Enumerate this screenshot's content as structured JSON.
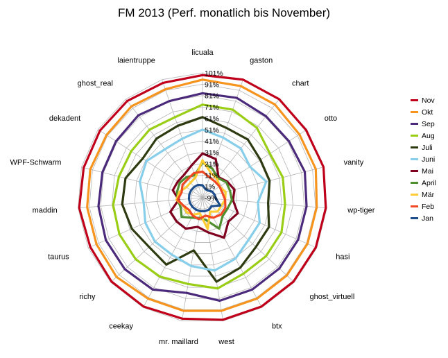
{
  "chart_data": {
    "type": "radar",
    "title": "FM 2013 (Perf. monatlich bis November)",
    "axis_tick_labels": [
      "-9%",
      "1%",
      "11%",
      "21%",
      "31%",
      "41%",
      "51%",
      "61%",
      "71%",
      "81%",
      "91%",
      "101%"
    ],
    "rlim": [
      -9,
      101
    ],
    "grid": true,
    "legend_position": "right",
    "categories": [
      "licuala",
      "gaston",
      "chart",
      "otto",
      "vanity",
      "wp-tiger",
      "hasi",
      "ghost_virtuell",
      "btx",
      "west",
      "mr. maillard",
      "ceekay",
      "richy",
      "taurus",
      "maddin",
      "WPF-Schwarm",
      "dekadent",
      "ghost_real",
      "laientruppe"
    ],
    "series": [
      {
        "name": "Nov",
        "color": "#c0001a",
        "values": [
          99,
          101,
          101,
          100,
          101,
          100,
          100,
          100,
          100,
          100,
          99,
          100,
          100,
          99,
          100,
          99,
          99,
          99,
          98
        ]
      },
      {
        "name": "Okt",
        "color": "#f7941d",
        "values": [
          95,
          95,
          95,
          93,
          94,
          92,
          92,
          92,
          92,
          92,
          92,
          92,
          94,
          93,
          93,
          93,
          92,
          93,
          92
        ]
      },
      {
        "name": "Sep",
        "color": "#4b2a7b",
        "values": [
          83,
          84,
          82,
          82,
          84,
          83,
          83,
          83,
          83,
          83,
          76,
          83,
          84,
          84,
          83,
          82,
          82,
          83,
          81
        ]
      },
      {
        "name": "Aug",
        "color": "#9acd16",
        "values": [
          73,
          73,
          69,
          62,
          64,
          64,
          67,
          67,
          67,
          72,
          68,
          70,
          71,
          71,
          70,
          67,
          66,
          67,
          66
        ]
      },
      {
        "name": "Juli",
        "color": "#2e3a10",
        "values": [
          62,
          56,
          56,
          52,
          52,
          49,
          55,
          55,
          61,
          66,
          38,
          58,
          55,
          59,
          62,
          61,
          54,
          57,
          58
        ]
      },
      {
        "name": "Juni",
        "color": "#87ceeb",
        "values": [
          51,
          47,
          46,
          41,
          49,
          40,
          46,
          46,
          52,
          56,
          52,
          48,
          48,
          46,
          43,
          48,
          50,
          45,
          46
        ]
      },
      {
        "name": "Mai",
        "color": "#800020",
        "values": [
          30,
          27,
          14,
          17,
          20,
          18,
          25,
          22,
          31,
          22,
          17,
          22,
          22,
          22,
          12,
          18,
          17,
          17,
          21
        ]
      },
      {
        "name": "April",
        "color": "#4f8f2f",
        "values": [
          22,
          18,
          13,
          16,
          16,
          17,
          15,
          15,
          22,
          11,
          9,
          11,
          16,
          12,
          13,
          14,
          15,
          14,
          12
        ]
      },
      {
        "name": "Mär",
        "color": "#ffcc33",
        "values": [
          24,
          14,
          12,
          9,
          12,
          11,
          9,
          9,
          5,
          19,
          5,
          8,
          10,
          9,
          14,
          12,
          8,
          8,
          10
        ]
      },
      {
        "name": "Feb",
        "color": "#f04a24",
        "values": [
          14,
          10,
          9,
          9,
          9,
          11,
          13,
          13,
          11,
          7,
          10,
          9,
          7,
          9,
          13,
          10,
          12,
          12,
          14
        ]
      },
      {
        "name": "Jan",
        "color": "#1f4e8c",
        "values": [
          2,
          -1,
          -1,
          1,
          2,
          3,
          8,
          2,
          3,
          3,
          3,
          3,
          3,
          3,
          3,
          3,
          3,
          3,
          3
        ]
      }
    ]
  }
}
